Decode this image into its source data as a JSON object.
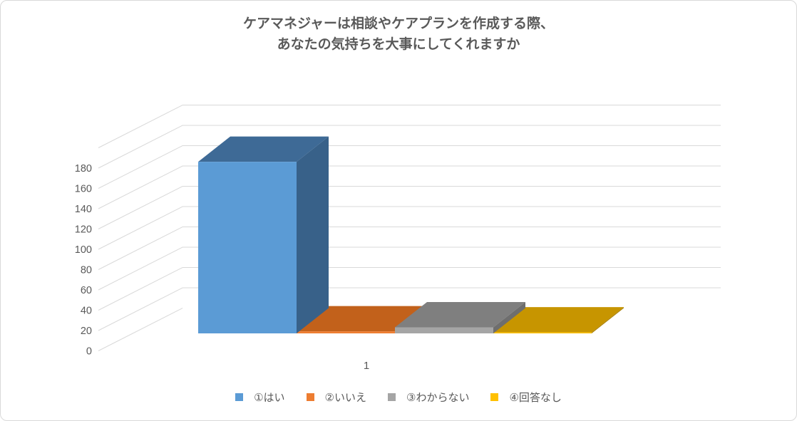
{
  "window": {
    "background": "#ffffff",
    "frame_border_color": "#d9d9d9"
  },
  "chart_data": {
    "type": "bar",
    "projection": "3d",
    "title_line1": "ケアマネジャーは相談やケアプランを作成する際、",
    "title_line2": "あなたの気持ちを大事にしてくれますか",
    "categories": [
      "1"
    ],
    "series": [
      {
        "name": "①はい",
        "value": 169,
        "color": "#5B9BD5",
        "top_color": "#3E6A96",
        "side_color": "#386189"
      },
      {
        "name": "②いいえ",
        "value": 2,
        "color": "#ED7D31",
        "top_color": "#C2611B",
        "side_color": "#A35317"
      },
      {
        "name": "③わからない",
        "value": 6,
        "color": "#A5A5A5",
        "top_color": "#7F7F7F",
        "side_color": "#6E6E6E"
      },
      {
        "name": "④回答なし",
        "value": 1,
        "color": "#FFC000",
        "top_color": "#C79500",
        "side_color": "#A67C00"
      }
    ],
    "ylim": [
      0,
      200
    ],
    "ytick_step": 20,
    "ytick_labels": [
      "0",
      "20",
      "40",
      "60",
      "80",
      "100",
      "120",
      "140",
      "160",
      "180"
    ],
    "grid": true,
    "legend_position": "bottom",
    "text_color": "#595959",
    "grid_color": "#D9D9D9"
  }
}
